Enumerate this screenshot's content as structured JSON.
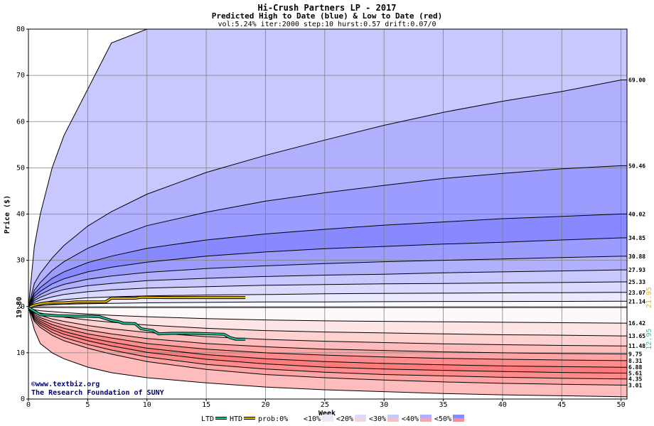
{
  "chart_data": {
    "type": "area",
    "title": "Hi-Crush Partners LP - 2017",
    "subtitle": "Predicted High to Date (blue) &  Low to Date (red)",
    "params": "vol:5.24% iter:2000 step:10 hurst:0.57 drift:0.07/0",
    "xlabel": "Week",
    "ylabel": "Price ($)",
    "xlim": [
      0,
      50.5
    ],
    "ylim": [
      0,
      80
    ],
    "xticks": [
      0,
      5,
      10,
      15,
      20,
      25,
      30,
      35,
      40,
      45,
      50
    ],
    "yticks": [
      0,
      10,
      20,
      30,
      40,
      50,
      60,
      70,
      80
    ],
    "grid": true,
    "start_price": 19.8,
    "start_price_label": "19.80",
    "weeks": [
      0,
      0.5,
      1,
      2,
      3,
      5,
      7,
      10,
      15,
      20,
      25,
      30,
      35,
      40,
      45,
      50,
      50.5
    ],
    "high_series": [
      {
        "name": "p05",
        "label": "21.14",
        "values": [
          19.8,
          20.1,
          20.2,
          20.4,
          20.5,
          20.6,
          20.7,
          20.8,
          20.9,
          21.0,
          21.0,
          21.05,
          21.1,
          21.1,
          21.12,
          21.14,
          21.14
        ]
      },
      {
        "name": "p10",
        "label": "23.07",
        "values": [
          19.8,
          20.5,
          20.8,
          21.2,
          21.5,
          21.9,
          22.1,
          22.3,
          22.5,
          22.6,
          22.75,
          22.85,
          22.9,
          22.95,
          23.0,
          23.07,
          23.07
        ]
      },
      {
        "name": "p20",
        "label": "25.33",
        "values": [
          19.8,
          20.9,
          21.4,
          22.1,
          22.6,
          23.2,
          23.6,
          24.0,
          24.3,
          24.6,
          24.75,
          24.9,
          25.0,
          25.1,
          25.2,
          25.33,
          25.33
        ]
      },
      {
        "name": "p30",
        "label": "27.93",
        "values": [
          19.8,
          21.3,
          22.0,
          23.0,
          23.7,
          24.5,
          25.0,
          25.6,
          26.1,
          26.5,
          26.8,
          27.0,
          27.3,
          27.5,
          27.7,
          27.93,
          27.93
        ]
      },
      {
        "name": "p40",
        "label": "30.88",
        "values": [
          19.8,
          21.7,
          22.6,
          23.9,
          24.8,
          25.9,
          26.6,
          27.4,
          28.2,
          28.8,
          29.3,
          29.7,
          30.0,
          30.3,
          30.6,
          30.88,
          30.88
        ]
      },
      {
        "name": "p50",
        "label": "34.85",
        "values": [
          19.8,
          22.2,
          23.3,
          24.9,
          26.0,
          27.5,
          28.5,
          29.6,
          30.9,
          31.8,
          32.5,
          33.0,
          33.5,
          33.9,
          34.4,
          34.85,
          34.85
        ]
      },
      {
        "name": "p70",
        "label": "40.02",
        "values": [
          19.8,
          22.8,
          24.1,
          26.1,
          27.5,
          29.5,
          30.9,
          32.6,
          34.4,
          35.7,
          36.7,
          37.6,
          38.3,
          39.0,
          39.5,
          40.02,
          40.02
        ]
      },
      {
        "name": "p90",
        "label": "50.46",
        "values": [
          19.8,
          23.5,
          25.2,
          27.8,
          29.7,
          32.6,
          34.7,
          37.5,
          40.4,
          42.8,
          44.6,
          46.2,
          47.7,
          48.8,
          49.8,
          50.46,
          50.46
        ]
      },
      {
        "name": "p99",
        "label": "69.00",
        "values": [
          19.8,
          25.0,
          27.2,
          30.5,
          33.2,
          37.4,
          40.5,
          44.3,
          49.0,
          52.7,
          56.0,
          59.2,
          62.0,
          64.4,
          66.5,
          69.0,
          69.0
        ]
      },
      {
        "name": "max",
        "label": "",
        "values": [
          19.8,
          33,
          40,
          50,
          57,
          67,
          77,
          80,
          80,
          80,
          80,
          80,
          80,
          80,
          80,
          80,
          80
        ]
      }
    ],
    "low_series": [
      {
        "name": "p05",
        "label": "16.42",
        "values": [
          19.8,
          19.3,
          19.1,
          18.9,
          18.7,
          18.4,
          18.1,
          17.8,
          17.4,
          17.1,
          16.9,
          16.8,
          16.7,
          16.6,
          16.5,
          16.42,
          16.42
        ]
      },
      {
        "name": "p10",
        "label": "13.65",
        "values": [
          19.8,
          18.9,
          18.6,
          18.1,
          17.7,
          17.1,
          16.6,
          16.0,
          15.3,
          14.8,
          14.5,
          14.3,
          14.1,
          13.9,
          13.8,
          13.65,
          13.65
        ]
      },
      {
        "name": "p20",
        "label": "11.48",
        "values": [
          19.8,
          18.6,
          18.1,
          17.3,
          16.8,
          15.9,
          15.2,
          14.4,
          13.5,
          12.9,
          12.5,
          12.2,
          11.95,
          11.75,
          11.6,
          11.48,
          11.48
        ]
      },
      {
        "name": "p30",
        "label": "9.75",
        "values": [
          19.8,
          18.3,
          17.6,
          16.7,
          16.0,
          14.9,
          14.1,
          13.1,
          12.0,
          11.3,
          10.8,
          10.5,
          10.2,
          10.0,
          9.85,
          9.75,
          9.75
        ]
      },
      {
        "name": "p40",
        "label": "8.31",
        "values": [
          19.8,
          18.0,
          17.2,
          16.1,
          15.3,
          14.1,
          13.2,
          12.0,
          10.8,
          10.0,
          9.5,
          9.1,
          8.8,
          8.6,
          8.45,
          8.31,
          8.31
        ]
      },
      {
        "name": "p50",
        "label": "6.88",
        "values": [
          19.8,
          17.7,
          16.8,
          15.5,
          14.6,
          13.3,
          12.3,
          11.0,
          9.6,
          8.7,
          8.1,
          7.7,
          7.4,
          7.15,
          7.0,
          6.88,
          6.88
        ]
      },
      {
        "name": "p60",
        "label": "5.61",
        "values": [
          19.8,
          17.4,
          16.4,
          15.0,
          14.0,
          12.6,
          11.5,
          10.1,
          8.6,
          7.6,
          6.9,
          6.5,
          6.2,
          5.95,
          5.75,
          5.61,
          5.61
        ]
      },
      {
        "name": "p70",
        "label": "4.35",
        "values": [
          19.8,
          17.1,
          16.0,
          14.4,
          13.3,
          11.8,
          10.6,
          9.1,
          7.5,
          6.5,
          5.8,
          5.3,
          5.0,
          4.7,
          4.5,
          4.35,
          4.35
        ]
      },
      {
        "name": "p90",
        "label": "3.01",
        "values": [
          19.8,
          16.8,
          15.5,
          13.8,
          12.6,
          11.0,
          9.7,
          8.1,
          6.4,
          5.3,
          4.6,
          4.1,
          3.7,
          3.4,
          3.2,
          3.01,
          3.01
        ]
      },
      {
        "name": "min",
        "label": "",
        "values": [
          19.8,
          15,
          12,
          10,
          8.7,
          6.9,
          5.7,
          4.6,
          3.5,
          2.6,
          2.0,
          1.6,
          1.2,
          0.9,
          0.7,
          0.5,
          0.5
        ]
      }
    ],
    "high_fill_colors": [
      "#fbfbff",
      "#eaeaff",
      "#dadaff",
      "#c8c8ff",
      "#b0b0ff",
      "#9c9cff",
      "#8888ff",
      "#9c9cff",
      "#b0b0ff",
      "#c8c8ff",
      "#dadaff",
      "#eaeaff"
    ],
    "low_fill_colors": [
      "#fff8f8",
      "#ffe6e6",
      "#ffd2d2",
      "#ffbcbc",
      "#ffa4a4",
      "#ff8c8c",
      "#ff7c7c",
      "#ff8c8c",
      "#ffa4a4",
      "#ffbcbc",
      "#ffd2d2",
      "#ffe6e6"
    ],
    "htd": {
      "name": "HTD",
      "color": "#f0b400",
      "label": "21.95",
      "x": [
        0,
        0.5,
        1.0,
        1.5,
        2.0,
        3.0,
        4.0,
        5.0,
        6.0,
        6.5,
        7.0,
        8.0,
        9.0,
        9.5,
        10.0,
        12.0,
        14.0,
        16.0,
        18.0,
        18.3
      ],
      "y": [
        19.8,
        20.3,
        20.6,
        20.8,
        20.8,
        20.8,
        21.0,
        21.0,
        21.0,
        21.0,
        21.8,
        21.8,
        21.8,
        22.0,
        22.0,
        21.95,
        21.95,
        21.95,
        21.95,
        21.95
      ]
    },
    "ltd": {
      "name": "LTD",
      "color": "#20c8a0",
      "label": "12.95",
      "x": [
        0,
        0.5,
        1.0,
        1.5,
        2.5,
        4.0,
        5.0,
        6.0,
        7.0,
        7.5,
        8.0,
        9.0,
        9.5,
        10.0,
        10.5,
        11.0,
        12.0,
        14.0,
        16.5,
        17.0,
        17.5,
        18.3
      ],
      "y": [
        19.8,
        19.0,
        18.2,
        18.2,
        18.0,
        17.9,
        17.9,
        17.8,
        17.0,
        16.8,
        16.4,
        16.3,
        15.2,
        15.0,
        14.8,
        14.1,
        14.2,
        14.2,
        14.0,
        13.3,
        12.95,
        12.95
      ]
    },
    "legend": {
      "items": [
        {
          "label": "LTD",
          "kind": "line",
          "color": "#20c8a0"
        },
        {
          "label": "HTD",
          "kind": "line",
          "color": "#f0b400"
        },
        {
          "label": "prob:0%",
          "kind": "swatch",
          "top": "#ffffff",
          "bottom": "#ffffff"
        },
        {
          "label": "<10%",
          "kind": "swatch",
          "top": "#eaeaff",
          "bottom": "#ffe6e6"
        },
        {
          "label": "<20%",
          "kind": "swatch",
          "top": "#dadaff",
          "bottom": "#ffd2d2"
        },
        {
          "label": "<30%",
          "kind": "swatch",
          "top": "#c8c8ff",
          "bottom": "#ffbcbc"
        },
        {
          "label": "<40%",
          "kind": "swatch",
          "top": "#b0b0ff",
          "bottom": "#ffa4a4"
        },
        {
          "label": "<50%",
          "kind": "swatch",
          "top": "#8888ff",
          "bottom": "#ff8c8c"
        }
      ]
    },
    "watermark": {
      "line1": "©www.textbiz.org",
      "line2": "The Research Foundation of SUNY",
      "color": "#000080"
    }
  }
}
